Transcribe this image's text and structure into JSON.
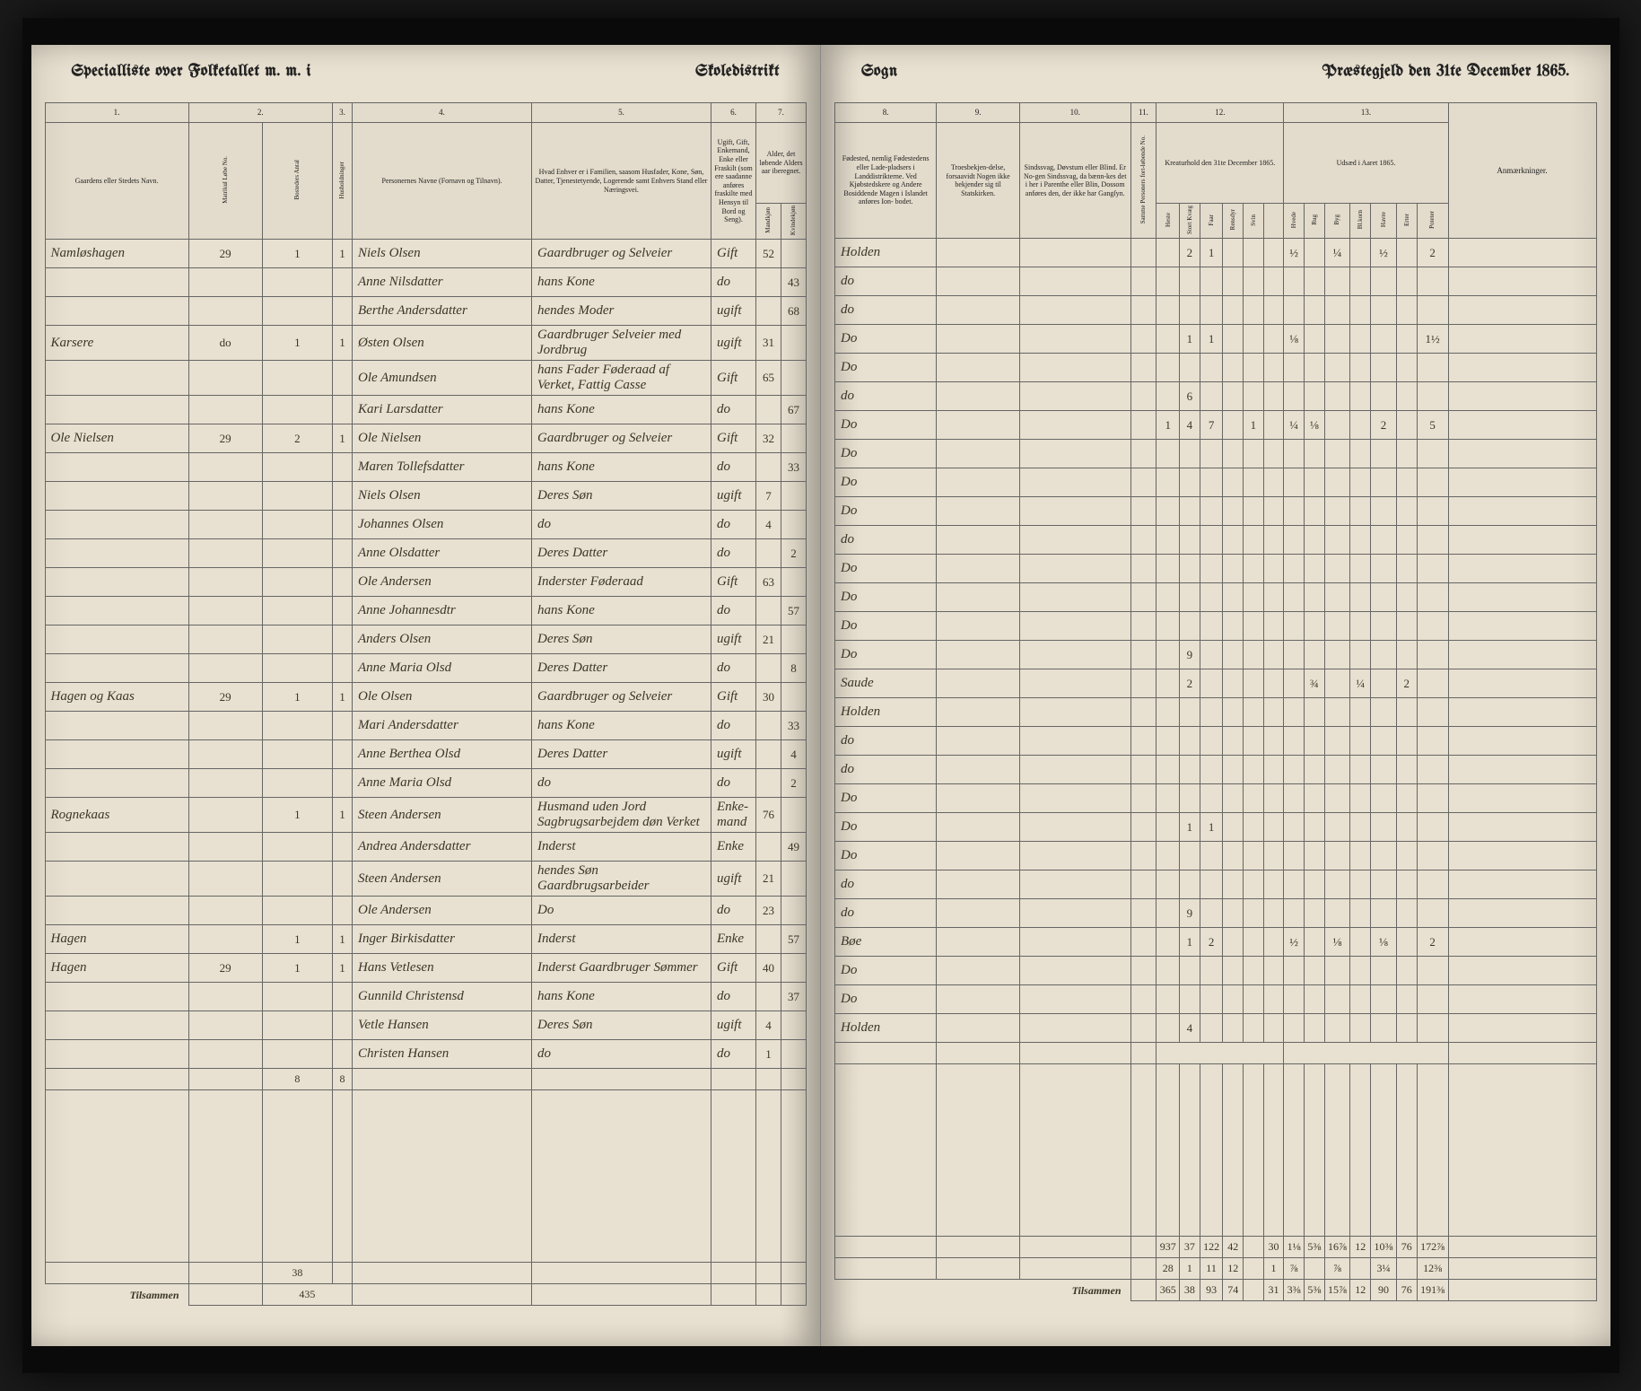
{
  "header": {
    "left_title_1": "Specialliste over Folketallet m. m. i",
    "left_title_2": "Skoledistrikt",
    "right_title_1": "Sogn",
    "right_title_2": "Præstegjeld den 31te December 1865."
  },
  "left_columns": {
    "c1": "1.",
    "c2": "2.",
    "c3": "3.",
    "c4": "4.",
    "c5": "5.",
    "c6": "6.",
    "c7": "7.",
    "h1": "Gaardens eller Stedets\nNavn.",
    "h2a": "Matrikul Løbe No.",
    "h2b": "Bosteders Antal",
    "h3": "Husholdninger",
    "h4": "Personernes Navne (Fornavn og Tilnavn).",
    "h5": "Hvad Enhver er i Familien, saasom Husfader, Kone, Søn, Datter, Tjenestetyende, Logerende\nsamt\nEnhvers Stand eller Næringsvei.",
    "h6": "Ugift, Gift, Enkemand, Enke eller Fraskilt (som ere saadanne anføres fraskilte med Hensyn til Bord og Seng).",
    "h7": "Alder, det løbende Alders aar iberegnet.",
    "h7a": "Mandkjøn",
    "h7b": "Kvindekjøn"
  },
  "right_columns": {
    "c8": "8.",
    "c9": "9.",
    "c10": "10.",
    "c11": "11.",
    "c12": "12.",
    "c13": "13.",
    "h8": "Fødested, nemlig Fødestedens eller Lade-pladsers i Landdistrikterne.\nVed Kjøbstedskere og Andere Bosiddende Magen i Islandet anføres Ion-\nbodet.",
    "h9": "Troesbekjen-delse, forsaavidt Nogen ikke bekjender sig til Statskirken.",
    "h10": "Sindssvag, Døvstum eller Blind. Er No-gen Sindssvag, da bænn-kes det i her i Parenthe eller Blin, Dossom anføres den, der ikke har Gangſyn.",
    "h11": "Samme Personers fort-løbende No.",
    "h12": "Kreaturhold\nden 31te December 1865.",
    "h13": "Udsæd i\nAaret 1865.",
    "h12_sub": [
      "Heste",
      "Stort Kvæg",
      "Faar",
      "Rensdyr",
      "Svin"
    ],
    "h13_sub": [
      "Hvede",
      "Rug",
      "Byg",
      "Bl.korn",
      "Havre",
      "Erter",
      "Poteter"
    ],
    "remarks": "Anmærkninger."
  },
  "rows": [
    {
      "farm": "Namløshagen",
      "mnr": "29",
      "b": "1",
      "h": "1",
      "name": "Niels Olsen",
      "rel": "Gaardbruger og Selveier",
      "stat": "Gift",
      "m": "52",
      "k": "",
      "birth": "Holden",
      "c12": [
        "",
        "2",
        "1",
        "",
        "",
        ""
      ],
      "c13": [
        "½",
        "",
        "¼",
        "",
        "½",
        "",
        "2"
      ]
    },
    {
      "farm": "",
      "mnr": "",
      "b": "",
      "h": "",
      "name": "Anne Nilsdatter",
      "rel": "hans Kone",
      "stat": "do",
      "m": "",
      "k": "43",
      "birth": "do",
      "c12": [
        "",
        "",
        "",
        "",
        "",
        ""
      ],
      "c13": [
        "",
        "",
        "",
        "",
        "",
        "",
        ""
      ]
    },
    {
      "farm": "",
      "mnr": "",
      "b": "",
      "h": "",
      "name": "Berthe Andersdatter",
      "rel": "hendes Moder",
      "stat": "ugift",
      "m": "",
      "k": "68",
      "birth": "do",
      "c12": [
        "",
        "",
        "",
        "",
        "",
        ""
      ],
      "c13": [
        "",
        "",
        "",
        "",
        "",
        "",
        ""
      ]
    },
    {
      "farm": "Karsere",
      "mnr": "do",
      "b": "1",
      "h": "1",
      "name": "Østen Olsen",
      "rel": "Gaardbruger Selveier med Jordbrug",
      "stat": "ugift",
      "m": "31",
      "k": "",
      "birth": "Do",
      "c12": [
        "",
        "1",
        "1",
        "",
        "",
        ""
      ],
      "c13": [
        "⅛",
        "",
        "",
        "",
        "",
        "",
        "1½"
      ]
    },
    {
      "farm": "",
      "mnr": "",
      "b": "",
      "h": "",
      "name": "Ole Amundsen",
      "rel": "hans Fader Føderaad af Verket, Fattig Casse",
      "stat": "Gift",
      "m": "65",
      "k": "",
      "birth": "Do",
      "c12": [
        "",
        "",
        "",
        "",
        "",
        ""
      ],
      "c13": [
        "",
        "",
        "",
        "",
        "",
        "",
        ""
      ]
    },
    {
      "farm": "",
      "mnr": "",
      "b": "",
      "h": "",
      "name": "Kari Larsdatter",
      "rel": "hans Kone",
      "stat": "do",
      "m": "",
      "k": "67",
      "birth": "do",
      "c12": [
        "",
        "6",
        "",
        "",
        "",
        ""
      ],
      "c13": [
        "",
        "",
        "",
        "",
        "",
        "",
        ""
      ]
    },
    {
      "farm": "Ole Nielsen",
      "mnr": "29",
      "b": "2",
      "h": "1",
      "name": "Ole Nielsen",
      "rel": "Gaardbruger og Selveier",
      "stat": "Gift",
      "m": "32",
      "k": "",
      "birth": "Do",
      "c12": [
        "1",
        "4",
        "7",
        "",
        "1",
        ""
      ],
      "c13": [
        "¼",
        "⅛",
        "",
        "",
        "2",
        "",
        "5"
      ]
    },
    {
      "farm": "",
      "mnr": "",
      "b": "",
      "h": "",
      "name": "Maren Tollefsdatter",
      "rel": "hans Kone",
      "stat": "do",
      "m": "",
      "k": "33",
      "birth": "Do",
      "c12": [
        "",
        "",
        "",
        "",
        "",
        ""
      ],
      "c13": [
        "",
        "",
        "",
        "",
        "",
        "",
        ""
      ]
    },
    {
      "farm": "",
      "mnr": "",
      "b": "",
      "h": "",
      "name": "Niels Olsen",
      "rel": "Deres Søn",
      "stat": "ugift",
      "m": "7",
      "k": "",
      "birth": "Do",
      "c12": [
        "",
        "",
        "",
        "",
        "",
        ""
      ],
      "c13": [
        "",
        "",
        "",
        "",
        "",
        "",
        ""
      ]
    },
    {
      "farm": "",
      "mnr": "",
      "b": "",
      "h": "",
      "name": "Johannes Olsen",
      "rel": "do",
      "stat": "do",
      "m": "4",
      "k": "",
      "birth": "Do",
      "c12": [
        "",
        "",
        "",
        "",
        "",
        ""
      ],
      "c13": [
        "",
        "",
        "",
        "",
        "",
        "",
        ""
      ]
    },
    {
      "farm": "",
      "mnr": "",
      "b": "",
      "h": "",
      "name": "Anne Olsdatter",
      "rel": "Deres Datter",
      "stat": "do",
      "m": "",
      "k": "2",
      "birth": "do",
      "c12": [
        "",
        "",
        "",
        "",
        "",
        ""
      ],
      "c13": [
        "",
        "",
        "",
        "",
        "",
        "",
        ""
      ]
    },
    {
      "farm": "",
      "mnr": "",
      "b": "",
      "h": "",
      "name": "Ole Andersen",
      "rel": "Inderster Føderaad",
      "stat": "Gift",
      "m": "63",
      "k": "",
      "birth": "Do",
      "c12": [
        "",
        "",
        "",
        "",
        "",
        ""
      ],
      "c13": [
        "",
        "",
        "",
        "",
        "",
        "",
        ""
      ]
    },
    {
      "farm": "",
      "mnr": "",
      "b": "",
      "h": "",
      "name": "Anne Johannesdtr",
      "rel": "hans Kone",
      "stat": "do",
      "m": "",
      "k": "57",
      "birth": "Do",
      "c12": [
        "",
        "",
        "",
        "",
        "",
        ""
      ],
      "c13": [
        "",
        "",
        "",
        "",
        "",
        "",
        ""
      ]
    },
    {
      "farm": "",
      "mnr": "",
      "b": "",
      "h": "",
      "name": "Anders Olsen",
      "rel": "Deres Søn",
      "stat": "ugift",
      "m": "21",
      "k": "",
      "birth": "Do",
      "c12": [
        "",
        "",
        "",
        "",
        "",
        ""
      ],
      "c13": [
        "",
        "",
        "",
        "",
        "",
        "",
        ""
      ]
    },
    {
      "farm": "",
      "mnr": "",
      "b": "",
      "h": "",
      "name": "Anne Maria Olsd",
      "rel": "Deres Datter",
      "stat": "do",
      "m": "",
      "k": "8",
      "birth": "Do",
      "c12": [
        "",
        "9",
        "",
        "",
        "",
        ""
      ],
      "c13": [
        "",
        "",
        "",
        "",
        "",
        "",
        ""
      ]
    },
    {
      "farm": "Hagen og Kaas",
      "mnr": "29",
      "b": "1",
      "h": "1",
      "name": "Ole Olsen",
      "rel": "Gaardbruger og Selveier",
      "stat": "Gift",
      "m": "30",
      "k": "",
      "birth": "Saude",
      "c12": [
        "",
        "2",
        "",
        "",
        "",
        ""
      ],
      "c13": [
        "",
        "¾",
        "",
        "¼",
        "",
        "2",
        ""
      ]
    },
    {
      "farm": "",
      "mnr": "",
      "b": "",
      "h": "",
      "name": "Mari Andersdatter",
      "rel": "hans Kone",
      "stat": "do",
      "m": "",
      "k": "33",
      "birth": "Holden",
      "c12": [
        "",
        "",
        "",
        "",
        "",
        ""
      ],
      "c13": [
        "",
        "",
        "",
        "",
        "",
        "",
        ""
      ]
    },
    {
      "farm": "",
      "mnr": "",
      "b": "",
      "h": "",
      "name": "Anne Berthea Olsd",
      "rel": "Deres Datter",
      "stat": "ugift",
      "m": "",
      "k": "4",
      "birth": "do",
      "c12": [
        "",
        "",
        "",
        "",
        "",
        ""
      ],
      "c13": [
        "",
        "",
        "",
        "",
        "",
        "",
        ""
      ]
    },
    {
      "farm": "",
      "mnr": "",
      "b": "",
      "h": "",
      "name": "Anne Maria Olsd",
      "rel": "do",
      "stat": "do",
      "m": "",
      "k": "2",
      "birth": "do",
      "c12": [
        "",
        "",
        "",
        "",
        "",
        ""
      ],
      "c13": [
        "",
        "",
        "",
        "",
        "",
        "",
        ""
      ]
    },
    {
      "farm": "Rognekaas",
      "mnr": "",
      "b": "1",
      "h": "1",
      "name": "Steen Andersen",
      "rel": "Husmand uden Jord Sagbrugsarbejdem døn Verket",
      "stat": "Enke-mand",
      "m": "76",
      "k": "",
      "birth": "Do",
      "c12": [
        "",
        "",
        "",
        "",
        "",
        ""
      ],
      "c13": [
        "",
        "",
        "",
        "",
        "",
        "",
        ""
      ]
    },
    {
      "farm": "",
      "mnr": "",
      "b": "",
      "h": "",
      "name": "Andrea Andersdatter",
      "rel": "Inderst",
      "stat": "Enke",
      "m": "",
      "k": "49",
      "birth": "Do",
      "c12": [
        "",
        "1",
        "1",
        "",
        "",
        ""
      ],
      "c13": [
        "",
        "",
        "",
        "",
        "",
        "",
        ""
      ]
    },
    {
      "farm": "",
      "mnr": "",
      "b": "",
      "h": "",
      "name": "Steen Andersen",
      "rel": "hendes Søn Gaardbrugsarbeider",
      "stat": "ugift",
      "m": "21",
      "k": "",
      "birth": "Do",
      "c12": [
        "",
        "",
        "",
        "",
        "",
        ""
      ],
      "c13": [
        "",
        "",
        "",
        "",
        "",
        "",
        ""
      ]
    },
    {
      "farm": "",
      "mnr": "",
      "b": "",
      "h": "",
      "name": "Ole Andersen",
      "rel": "Do",
      "stat": "do",
      "m": "23",
      "k": "",
      "birth": "do",
      "c12": [
        "",
        "",
        "",
        "",
        "",
        ""
      ],
      "c13": [
        "",
        "",
        "",
        "",
        "",
        "",
        ""
      ]
    },
    {
      "farm": "Hagen",
      "mnr": "",
      "b": "1",
      "h": "1",
      "name": "Inger Birkisdatter",
      "rel": "Inderst",
      "stat": "Enke",
      "m": "",
      "k": "57",
      "birth": "do",
      "c12": [
        "",
        "9",
        "",
        "",
        "",
        ""
      ],
      "c13": [
        "",
        "",
        "",
        "",
        "",
        "",
        ""
      ]
    },
    {
      "farm": "Hagen",
      "mnr": "29",
      "b": "1",
      "h": "1",
      "name": "Hans Vetlesen",
      "rel": "Inderst Gaardbruger Sømmer",
      "stat": "Gift",
      "m": "40",
      "k": "",
      "birth": "Bøe",
      "c12": [
        "",
        "1",
        "2",
        "",
        "",
        ""
      ],
      "c13": [
        "½",
        "",
        "⅛",
        "",
        "⅛",
        "",
        "2"
      ]
    },
    {
      "farm": "",
      "mnr": "",
      "b": "",
      "h": "",
      "name": "Gunnild Christensd",
      "rel": "hans Kone",
      "stat": "do",
      "m": "",
      "k": "37",
      "birth": "Do",
      "c12": [
        "",
        "",
        "",
        "",
        "",
        ""
      ],
      "c13": [
        "",
        "",
        "",
        "",
        "",
        "",
        ""
      ]
    },
    {
      "farm": "",
      "mnr": "",
      "b": "",
      "h": "",
      "name": "Vetle Hansen",
      "rel": "Deres Søn",
      "stat": "ugift",
      "m": "4",
      "k": "",
      "birth": "Do",
      "c12": [
        "",
        "",
        "",
        "",
        "",
        ""
      ],
      "c13": [
        "",
        "",
        "",
        "",
        "",
        "",
        ""
      ]
    },
    {
      "farm": "",
      "mnr": "",
      "b": "",
      "h": "",
      "name": "Christen Hansen",
      "rel": "do",
      "stat": "do",
      "m": "1",
      "k": "",
      "birth": "Holden",
      "c12": [
        "",
        "4",
        "",
        "",
        "",
        ""
      ],
      "c13": [
        "",
        "",
        "",
        "",
        "",
        "",
        ""
      ]
    }
  ],
  "mid_total": {
    "b": "8",
    "h": "8"
  },
  "final_left": {
    "b": "38",
    "h": "",
    "c": "435"
  },
  "totals_right": [
    {
      "c11": "",
      "c12": [
        "937",
        "37",
        "122",
        "42",
        "",
        "30"
      ],
      "c13": [
        "1⅛",
        "5⅜",
        "16⅞",
        "12",
        "10⅜",
        "76",
        "172⅞"
      ]
    },
    {
      "c11": "",
      "c12": [
        "28",
        "1",
        "11",
        "12",
        "",
        "1"
      ],
      "c13": [
        "⅞",
        "",
        "⅞",
        "",
        "3¼",
        "",
        "12⅜"
      ]
    },
    {
      "c11": "",
      "c12": [
        "365",
        "38",
        "93",
        "74",
        "",
        "31"
      ],
      "c13": [
        "3⅜",
        "5⅜",
        "15⅞",
        "12",
        "90",
        "76",
        "191⅜"
      ]
    }
  ],
  "footer_left": "Tilsammen",
  "footer_right": "Tilsammen",
  "colors": {
    "paper": "#e8e0d0",
    "ink": "#3a3628",
    "border": "#666666",
    "dark_bg": "#1a1a1a"
  }
}
